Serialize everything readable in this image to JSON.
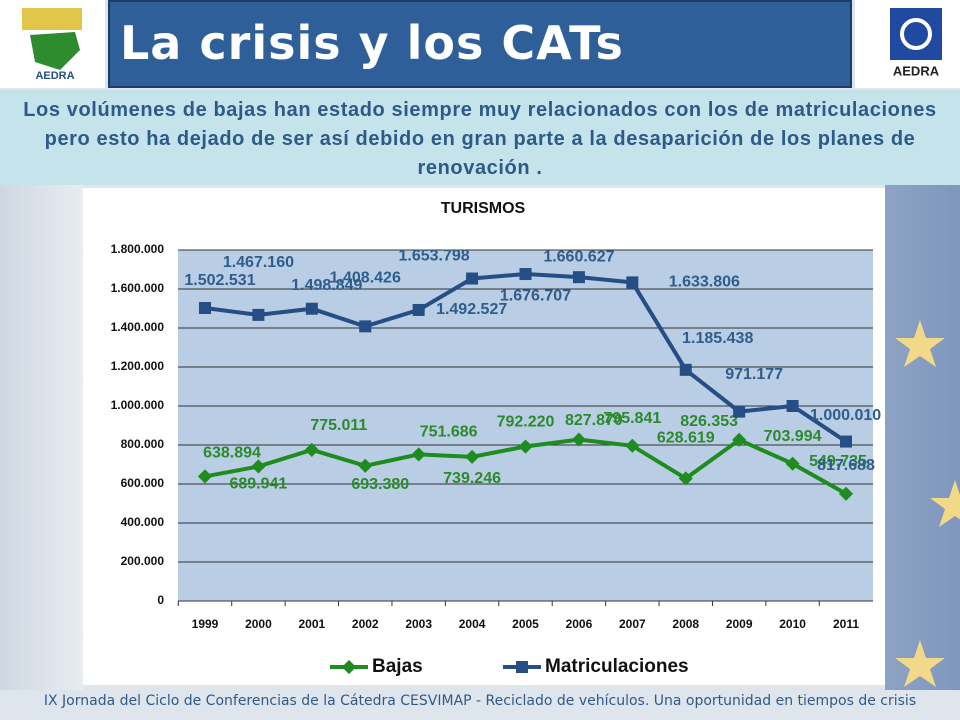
{
  "header": {
    "title": "La crisis y los CATs"
  },
  "subtitle": "Los volúmenes de bajas han estado siempre muy relacionados con los de matriculaciones pero esto ha dejado de ser así debido en gran parte a la desaparición de los planes de renovación .",
  "footer": "IX Jornada del Ciclo de Conferencias de la Cátedra CESVIMAP - Reciclado de vehículos. Una oportunidad en tiempos de crisis",
  "chart_data": {
    "type": "line",
    "title": "TURISMOS",
    "categories": [
      "1999",
      "2000",
      "2001",
      "2002",
      "2003",
      "2004",
      "2005",
      "2006",
      "2007",
      "2008",
      "2009",
      "2010",
      "2011"
    ],
    "series": [
      {
        "name": "Bajas",
        "color": "#1e8c1e",
        "values": [
          638894,
          689941,
          775011,
          693380,
          751686,
          739246,
          792220,
          827870,
          795841,
          628619,
          826353,
          703994,
          549735
        ],
        "value_labels": [
          "638.894",
          "689.941",
          "775.011",
          "693.380",
          "751.686",
          "739.246",
          "792.220",
          "827.870",
          "795.841",
          "628.619",
          "826.353",
          "703.994",
          "549.735"
        ]
      },
      {
        "name": "Matriculaciones",
        "color": "#254f84",
        "values": [
          1502531,
          1467160,
          1498849,
          1408426,
          1492527,
          1653798,
          1676707,
          1660627,
          1633806,
          1185438,
          971177,
          1000010,
          817688
        ],
        "value_labels": [
          "1.502.531",
          "1.467.160",
          "1.498.849",
          "1.408.426",
          "1.492.527",
          "1.653.798",
          "1.676.707",
          "1.660.627",
          "1.633.806",
          "1.185.438",
          "971.177",
          "1.000.010",
          "817.688"
        ]
      }
    ],
    "ylim": [
      0,
      1800000
    ],
    "yticks": [
      0,
      {
        "value": 200000,
        "label": "200.000"
      },
      {
        "value": 400000,
        "label": "400.000"
      },
      {
        "value": 600000,
        "label": "600.000"
      },
      {
        "value": 800000,
        "label": "800.000"
      },
      {
        "value": 1000000,
        "label": "1.000.000"
      },
      {
        "value": 1200000,
        "label": "1.200.000"
      },
      {
        "value": 1400000,
        "label": "1.400.000"
      },
      {
        "value": 1600000,
        "label": "1.600.000"
      },
      {
        "value": 1800000,
        "label": "1.800.000"
      }
    ],
    "grid": true,
    "legend": "bottom"
  }
}
